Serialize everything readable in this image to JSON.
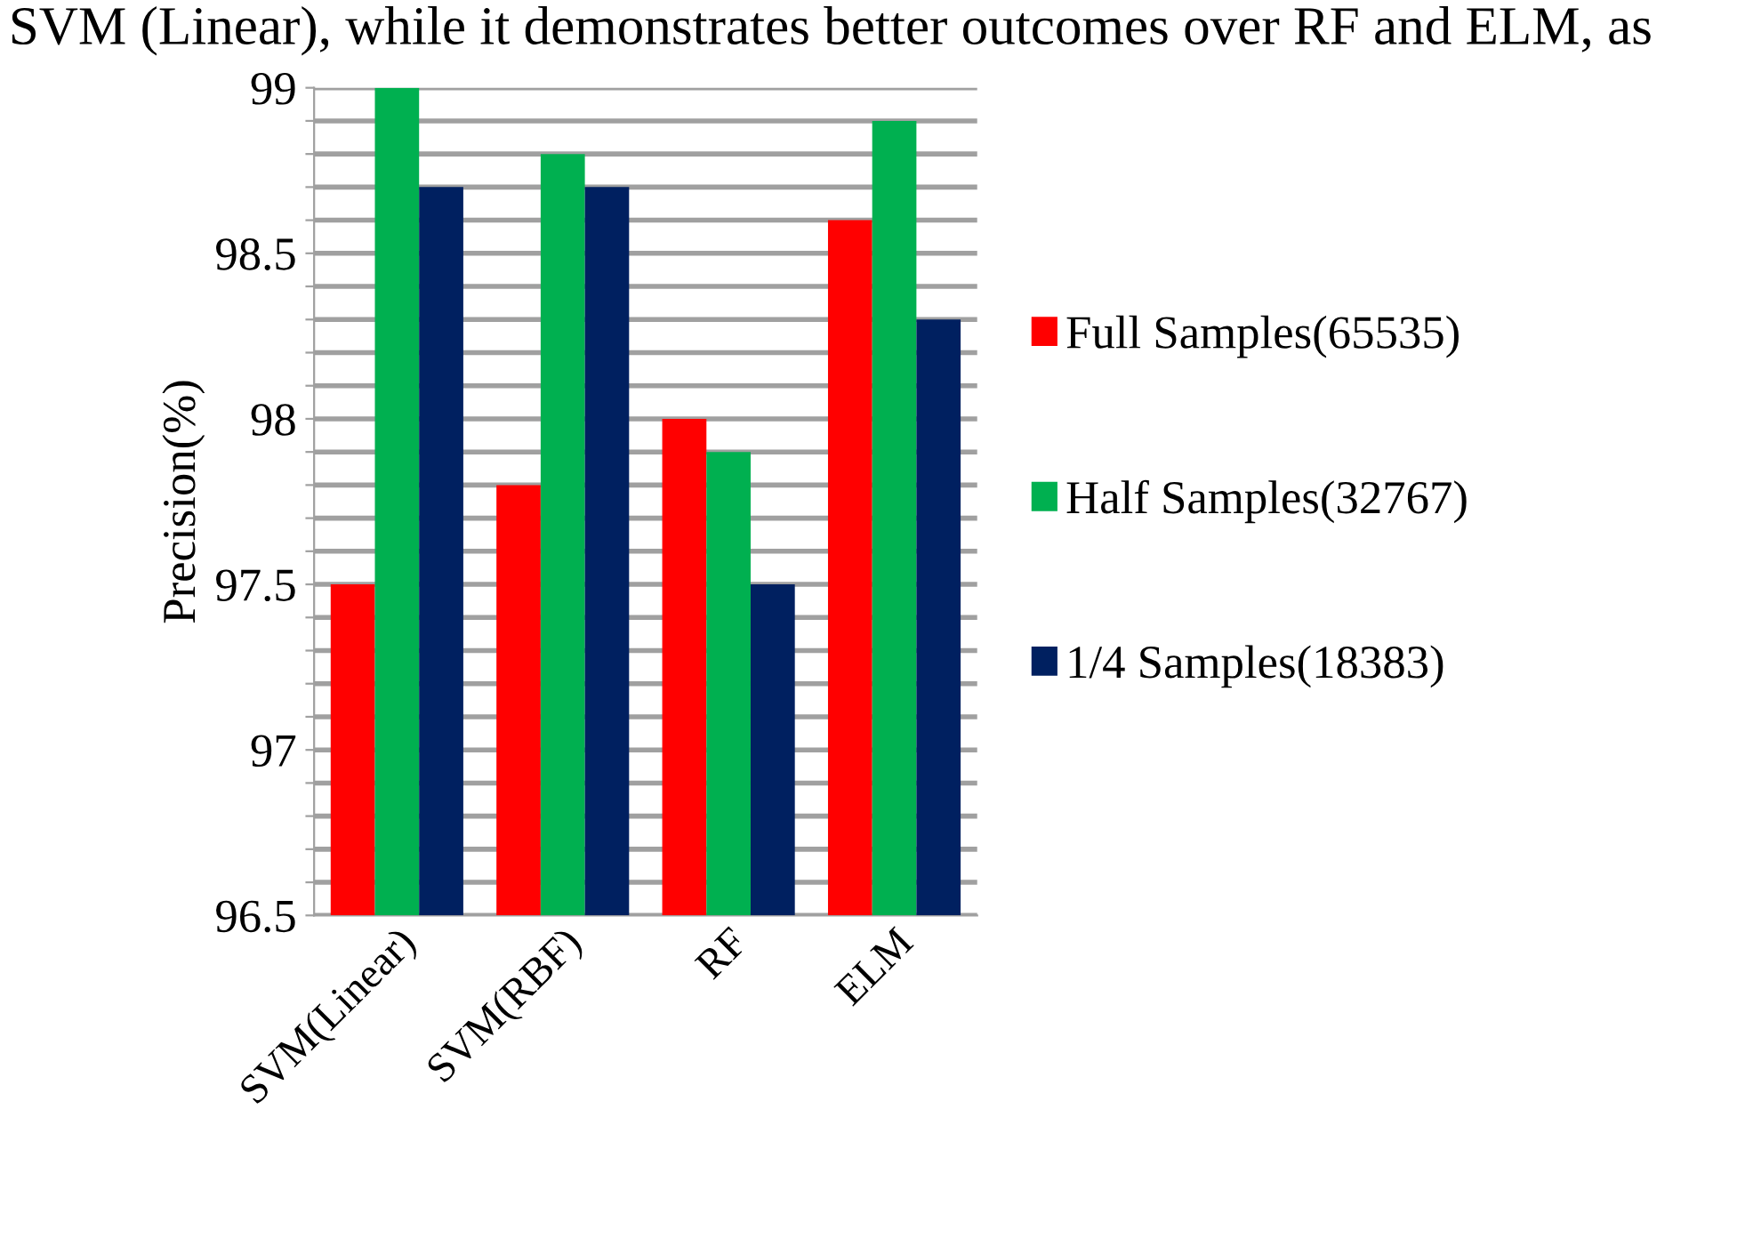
{
  "chart_data": {
    "type": "bar",
    "ylabel": "Precision(%)",
    "categories": [
      "SVM(Linear)",
      "SVM(RBF)",
      "RF",
      "ELM"
    ],
    "series": [
      {
        "name": "Full Samples(65535)",
        "color": "#ff0000",
        "values": [
          97.5,
          97.8,
          98.0,
          98.6
        ]
      },
      {
        "name": "Half Samples(32767)",
        "color": "#00b050",
        "values": [
          99.0,
          98.8,
          97.9,
          98.9
        ]
      },
      {
        "name": "1/4 Samples(18383)",
        "color": "#002060",
        "values": [
          98.7,
          98.7,
          97.5,
          98.3
        ]
      }
    ],
    "ylim": [
      96.5,
      99
    ],
    "yticks": [
      96.5,
      {
        "value": 96.6,
        "label": null
      },
      {
        "value": 96.7,
        "label": null
      },
      {
        "value": 96.8,
        "label": null
      },
      {
        "value": 96.9,
        "label": null
      },
      97,
      {
        "value": 97.1,
        "label": null
      },
      {
        "value": 97.2,
        "label": null
      },
      {
        "value": 97.3,
        "label": null
      },
      {
        "value": 97.4,
        "label": null
      },
      97.5,
      {
        "value": 97.6,
        "label": null
      },
      {
        "value": 97.7,
        "label": null
      },
      {
        "value": 97.8,
        "label": null
      },
      {
        "value": 97.9,
        "label": null
      },
      98,
      {
        "value": 98.1,
        "label": null
      },
      {
        "value": 98.2,
        "label": null
      },
      {
        "value": 98.3,
        "label": null
      },
      {
        "value": 98.4,
        "label": null
      },
      98.5,
      {
        "value": 98.6,
        "label": null
      },
      {
        "value": 98.7,
        "label": null
      },
      {
        "value": 98.8,
        "label": null
      },
      {
        "value": 98.9,
        "label": null
      },
      99
    ],
    "grid": "y",
    "legend": "right",
    "annotations": [
      "SVM (Linear), while it demonstrates better outcomes over RF and ELM, as"
    ]
  }
}
